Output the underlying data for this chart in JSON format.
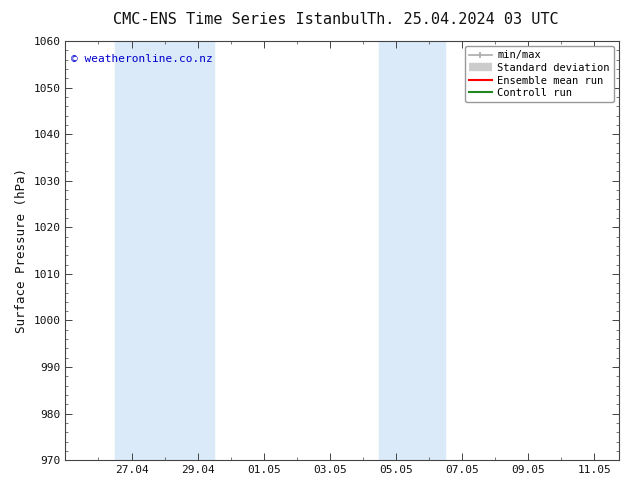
{
  "title_left": "CMC-ENS Time Series Istanbul",
  "title_right": "Th. 25.04.2024 03 UTC",
  "ylabel": "Surface Pressure (hPa)",
  "watermark": "© weatheronline.co.nz",
  "watermark_color": "#0000cc",
  "ylim": [
    970,
    1060
  ],
  "yticks": [
    970,
    980,
    990,
    1000,
    1010,
    1020,
    1030,
    1040,
    1050,
    1060
  ],
  "x_tick_labels": [
    "27.04",
    "29.04",
    "01.05",
    "03.05",
    "05.05",
    "07.05",
    "09.05",
    "11.05"
  ],
  "x_tick_positions": [
    2,
    4,
    6,
    8,
    10,
    12,
    14,
    16
  ],
  "xlim_left": 0.25,
  "xlim_right": 16.75,
  "shaded_band1_xmin": 1.5,
  "shaded_band1_xmax": 4.5,
  "shaded_band2_xmin": 9.5,
  "shaded_band2_xmax": 11.5,
  "shaded_color": "#daeaf8",
  "bg_color": "#ffffff",
  "plot_bg_color": "#ffffff",
  "legend_labels": [
    "min/max",
    "Standard deviation",
    "Ensemble mean run",
    "Controll run"
  ],
  "legend_colors": [
    "#aaaaaa",
    "#cccccc",
    "#ff0000",
    "#228822"
  ],
  "font_color": "#111111",
  "title_fontsize": 11,
  "axis_label_fontsize": 9,
  "tick_fontsize": 8
}
